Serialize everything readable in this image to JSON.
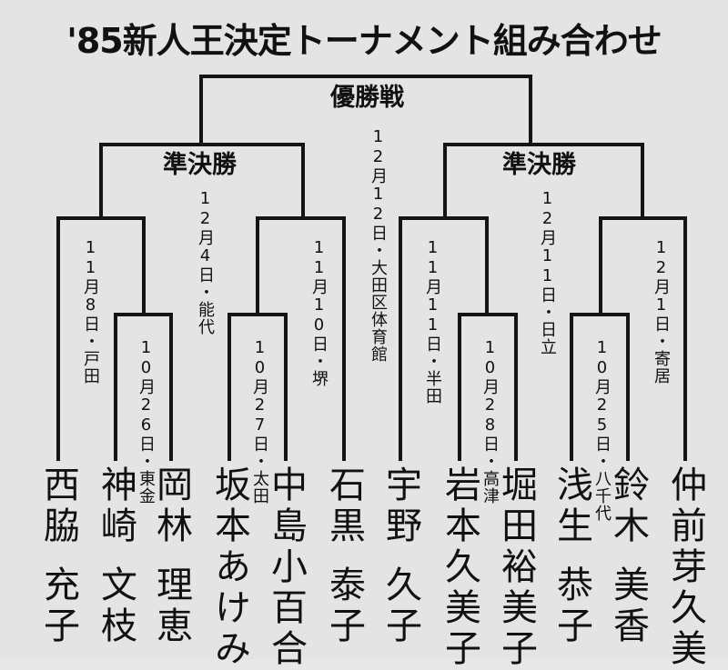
{
  "title": "'85新人王決定トーナメント組み合わせ",
  "rounds": {
    "final": "優勝戦",
    "semi_left": "準決勝",
    "semi_right": "準決勝"
  },
  "matches": {
    "final": "12月12日・大田区体育館",
    "semi_left": "12月4日・能代",
    "semi_right": "12月11日・日立",
    "qf1": "11月8日・戸田",
    "qf2": "11月10日・堺",
    "qf3": "11月11日・半田",
    "qf4": "12月1日・寄居",
    "r1a": "10月26日・東金",
    "r1b": "10月27日・太田",
    "r1c": "10月28日・高津",
    "r1d": "10月25日・八千代"
  },
  "players": [
    {
      "surname": "西脇",
      "given": "充子"
    },
    {
      "surname": "神崎",
      "given": "文枝"
    },
    {
      "surname": "岡林",
      "given": "理恵"
    },
    {
      "surname": "坂本あけみ",
      "given": ""
    },
    {
      "surname": "中島小百合",
      "given": ""
    },
    {
      "surname": "石黒",
      "given": "泰子"
    },
    {
      "surname": "宇野",
      "given": "久子"
    },
    {
      "surname": "岩本久美子",
      "given": ""
    },
    {
      "surname": "堀田裕美子",
      "given": ""
    },
    {
      "surname": "浅生",
      "given": "恭子"
    },
    {
      "surname": "鈴木",
      "given": "美香"
    },
    {
      "surname": "仲前芽久美",
      "given": ""
    }
  ]
}
